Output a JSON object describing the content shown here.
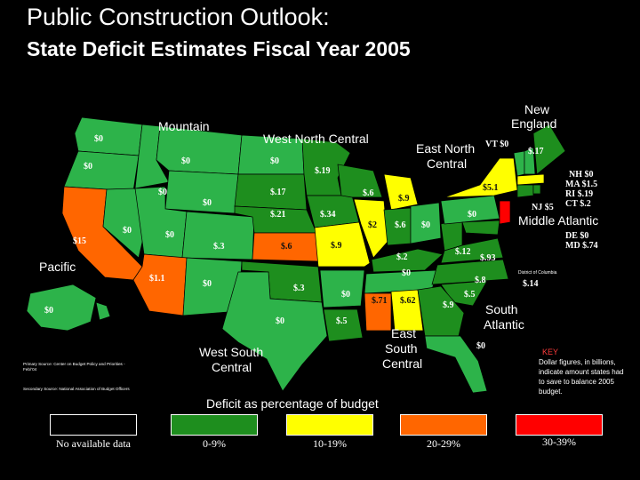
{
  "title": "Public Construction Outlook:",
  "subtitle": "State Deficit Estimates Fiscal Year 2005",
  "colors": {
    "no_data": "#ffffff",
    "range_0_9": "#1e8e1e",
    "range_10_19": "#ffff00",
    "range_20_29": "#ff6600",
    "range_30_39": "#ff0000",
    "map_default": "#2db34a"
  },
  "regions": {
    "mountain": "Mountain",
    "west_north_central": "West North Central",
    "east_north_central": "East North Central",
    "new_england": "New England",
    "middle_atlantic": "Middle Atlantic",
    "pacific": "Pacific",
    "south_atlantic": "South Atlantic",
    "east_south_central": "East South Central",
    "west_south_central": "West South Central"
  },
  "state_values": {
    "wa": "$0",
    "or": "$0",
    "ca": "$15",
    "ak": "$0",
    "hi": "$0",
    "id": "$0",
    "nv": "$0",
    "mt": "$0",
    "wy": "$0",
    "ut": "$0",
    "co": "$0",
    "az": "$1.1",
    "nm": "$0",
    "nd": "$0",
    "sd": "$.17",
    "ne": "$.21",
    "ks": "$.6",
    "mn": "$.19",
    "ia": "$.34",
    "mo": "$.9",
    "wi": "$.6",
    "mi": "$.9",
    "il": "$2",
    "in": "$.6",
    "oh": "$0",
    "ok": "$.3",
    "tx": "$0",
    "ar": "$0",
    "la": "$.5",
    "ky": "$.2",
    "tn": "$0",
    "ms": "$.71",
    "al": "$.62",
    "wv": "$.12",
    "va": "$.93",
    "nc": "$.8",
    "sc": "$.5",
    "ga": "$.9",
    "fl": "$0",
    "pa": "$0",
    "ny": "$5.1",
    "vt_label": "VT $0",
    "me": "$.17",
    "co_west": "$.3"
  },
  "ne_list": [
    "NH $0",
    "MA $1.5",
    "RI $.19",
    "CT $.2"
  ],
  "nj": "NJ $5",
  "de": "DE $0",
  "md": "MD $.74",
  "dc_label": "District of Columbia",
  "dc_value": "$.14",
  "key": {
    "title": "KEY",
    "text": "Dollar figures, in billions, indicate amount states had to save to balance 2005 budget."
  },
  "source": {
    "primary": "Primary Source: Center on Budget Policy and Priorities - Feb/'04",
    "secondary": "Secondary Source: National Association of Budget Officers"
  },
  "legend": {
    "title": "Deficit as percentage of budget",
    "items": [
      {
        "label": "No available data",
        "color": "#ffffff"
      },
      {
        "label": "0-9%",
        "color": "#1e8e1e"
      },
      {
        "label": "10-19%",
        "color": "#ffff00"
      },
      {
        "label": "20-29%",
        "color": "#ff6600"
      },
      {
        "label": "30-39%",
        "color": "#ff0000"
      }
    ]
  }
}
